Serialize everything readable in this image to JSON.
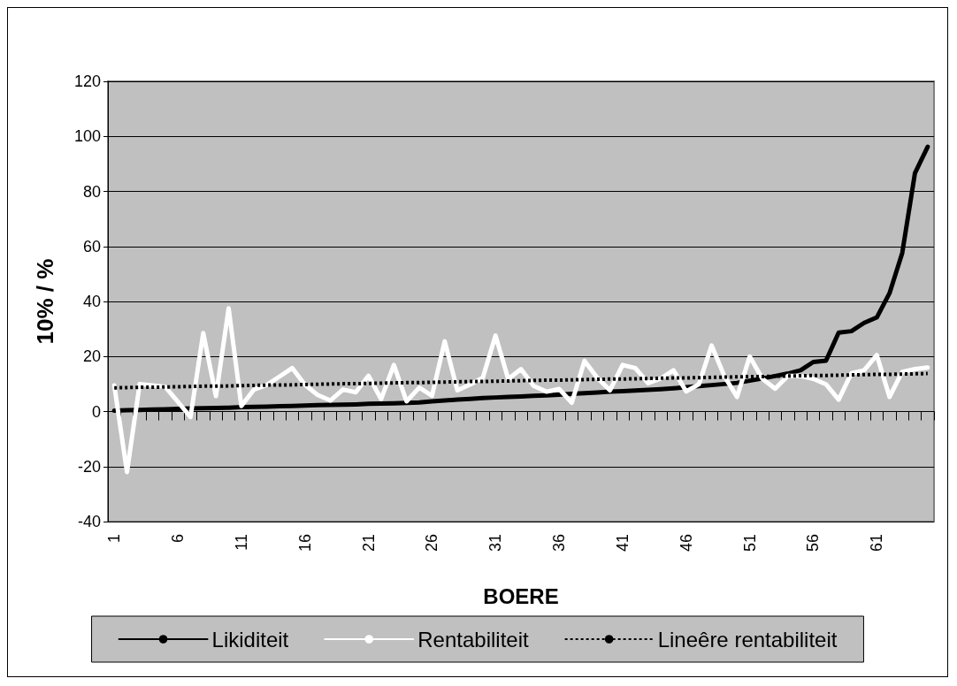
{
  "chart_data": {
    "type": "line",
    "xlabel": "BOERE",
    "ylabel": "10% / %",
    "categories": [
      "1",
      null,
      null,
      null,
      null,
      "6",
      null,
      null,
      null,
      null,
      "11",
      null,
      null,
      null,
      null,
      "16",
      null,
      null,
      null,
      null,
      "21",
      null,
      null,
      null,
      null,
      "26",
      null,
      null,
      null,
      null,
      "31",
      null,
      null,
      null,
      null,
      "36",
      null,
      null,
      null,
      null,
      "41",
      null,
      null,
      null,
      null,
      "46",
      null,
      null,
      null,
      null,
      "51",
      null,
      null,
      null,
      null,
      "56",
      null,
      null,
      null,
      null,
      "61",
      null,
      null,
      null,
      null
    ],
    "series": [
      {
        "name": "Likiditeit",
        "color": "#000000",
        "line_style": "solid",
        "values": [
          0.3,
          0.5,
          0.6,
          0.7,
          0.8,
          1.0,
          1.1,
          1.2,
          1.3,
          1.4,
          1.6,
          1.7,
          1.8,
          1.9,
          2.0,
          2.2,
          2.3,
          2.4,
          2.5,
          2.6,
          2.8,
          2.9,
          3.0,
          3.1,
          3.3,
          3.7,
          4.0,
          4.3,
          4.6,
          4.9,
          5.1,
          5.3,
          5.5,
          5.7,
          5.9,
          6.1,
          6.4,
          6.7,
          6.9,
          7.2,
          7.4,
          7.6,
          7.9,
          8.1,
          8.4,
          8.8,
          9.2,
          9.6,
          10.0,
          10.4,
          11.2,
          12.0,
          12.9,
          13.8,
          15.0,
          18,
          18.5,
          28.7,
          29.2,
          32.2,
          34.2,
          43,
          57.6,
          86.6,
          96.2
        ]
      },
      {
        "name": "Rentabiliteit",
        "color": "#ffffff",
        "line_style": "solid",
        "values": [
          9.5,
          -22,
          10,
          9.5,
          9,
          3.6,
          -2,
          28.5,
          5.6,
          37.5,
          2,
          8,
          9.7,
          12.7,
          15.8,
          9.7,
          6,
          4,
          8,
          7,
          13,
          4.5,
          16.9,
          3.7,
          8.7,
          5.7,
          25.5,
          7.7,
          9.8,
          12.3,
          27.6,
          11.8,
          15.4,
          9.3,
          7.2,
          8.2,
          3.2,
          18.4,
          12.3,
          7.7,
          16.9,
          15.8,
          10.3,
          12,
          15,
          7.3,
          9.9,
          24,
          12.9,
          5.3,
          20,
          11.9,
          8.3,
          12.9,
          12.9,
          11.9,
          9.9,
          4.3,
          13.9,
          15,
          20.5,
          5.3,
          14.4,
          15.4,
          16
        ]
      },
      {
        "name": "Lineêre rentabiliteit",
        "color": "#000000",
        "line_style": "dotted",
        "values": [
          8.6,
          8.7,
          8.8,
          8.8,
          8.9,
          9.0,
          9.1,
          9.2,
          9.2,
          9.3,
          9.4,
          9.5,
          9.6,
          9.6,
          9.7,
          9.8,
          9.9,
          10.0,
          10.1,
          10.1,
          10.2,
          10.3,
          10.4,
          10.5,
          10.5,
          10.6,
          10.7,
          10.8,
          10.9,
          10.9,
          11.0,
          11.1,
          11.2,
          11.3,
          11.4,
          11.4,
          11.5,
          11.6,
          11.7,
          11.8,
          11.8,
          11.9,
          12.0,
          12.1,
          12.2,
          12.2,
          12.3,
          12.4,
          12.5,
          12.6,
          12.7,
          12.7,
          12.8,
          12.9,
          13.0,
          13.1,
          13.1,
          13.2,
          13.3,
          13.4,
          13.5,
          13.5,
          13.6,
          13.7,
          13.8
        ]
      }
    ],
    "ylim": [
      -40,
      120
    ],
    "yticks": [
      -40,
      -20,
      0,
      20,
      40,
      60,
      80,
      100,
      120
    ],
    "grid": "y",
    "legend": "bottom",
    "marker": "none"
  }
}
